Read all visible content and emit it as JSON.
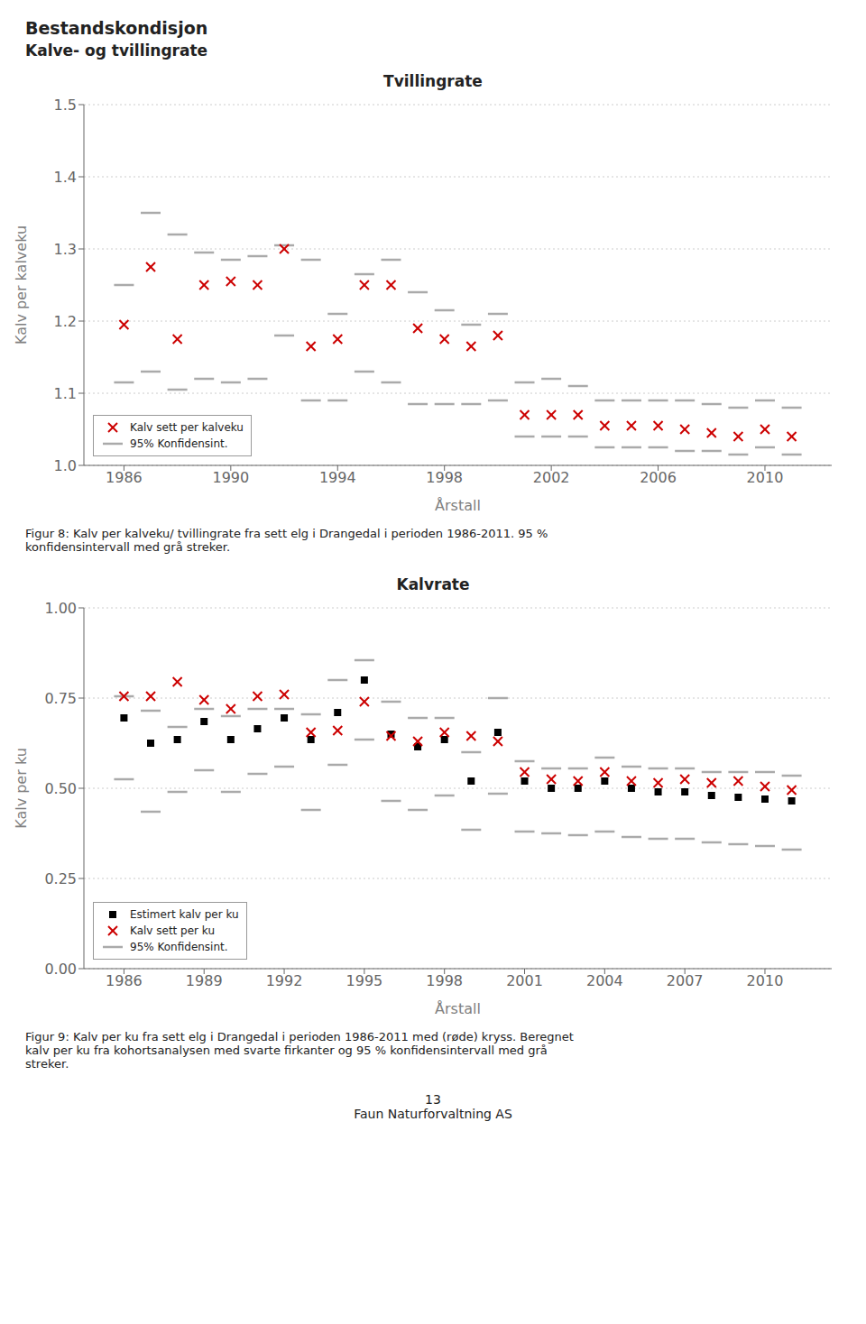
{
  "title": "Bestandskondisjon",
  "subtitle": "Kalve- og tvillingrate",
  "annotations": [
    "13",
    "Faun Naturforvaltning AS"
  ],
  "chart_data": [
    {
      "type": "scatter",
      "title": "Tvillingrate",
      "xlabel": "Årstall",
      "ylabel": "Kalv per kalveku",
      "x": [
        1986,
        1987,
        1988,
        1989,
        1990,
        1991,
        1992,
        1993,
        1994,
        1995,
        1996,
        1997,
        1998,
        1999,
        2000,
        2001,
        2002,
        2003,
        2004,
        2005,
        2006,
        2007,
        2008,
        2009,
        2010,
        2011
      ],
      "xlim": [
        1984.5,
        2012.5
      ],
      "xticks": [
        1986,
        1990,
        1994,
        1998,
        2002,
        2006,
        2010
      ],
      "ylim": [
        1.0,
        1.5
      ],
      "yticks": [
        {
          "value": 1.0,
          "label": "1.0"
        },
        1.1,
        1.2,
        1.3,
        1.4,
        1.5
      ],
      "grid": "y",
      "legend": "lower left",
      "series": [
        {
          "name": "Kalv sett per kalveku",
          "color": "#CC0000",
          "marker": "x",
          "values": [
            1.195,
            1.275,
            1.175,
            1.25,
            1.255,
            1.25,
            1.3,
            1.165,
            1.175,
            1.25,
            1.25,
            1.19,
            1.175,
            1.165,
            1.18,
            1.07,
            1.07,
            1.07,
            1.055,
            1.055,
            1.055,
            1.05,
            1.045,
            1.04,
            1.05,
            1.04
          ]
        },
        {
          "name": "95% Konfidensint.",
          "color": "#AAAAAA",
          "marker": "dash",
          "upper": [
            1.25,
            1.35,
            1.32,
            1.295,
            1.285,
            1.29,
            1.305,
            1.285,
            1.21,
            1.265,
            1.285,
            1.24,
            1.215,
            1.195,
            1.21,
            1.115,
            1.12,
            1.11,
            1.09,
            1.09,
            1.09,
            1.09,
            1.085,
            1.08,
            1.09,
            1.08
          ],
          "lower": [
            1.115,
            1.13,
            1.105,
            1.12,
            1.115,
            1.12,
            1.18,
            1.09,
            1.09,
            1.13,
            1.115,
            1.085,
            1.085,
            1.085,
            1.09,
            1.04,
            1.04,
            1.04,
            1.025,
            1.025,
            1.025,
            1.02,
            1.02,
            1.015,
            1.025,
            1.015
          ]
        }
      ],
      "annotations": [
        "Figur 8:  Kalv per kalveku/ tvillingrate fra sett elg i Drangedal i perioden 1986-2011. 95 %\nkonfidensintervall med grå streker."
      ]
    },
    {
      "type": "scatter",
      "title": "Kalvrate",
      "xlabel": "Årstall",
      "ylabel": "Kalv per ku",
      "x": [
        1986,
        1987,
        1988,
        1989,
        1990,
        1991,
        1992,
        1993,
        1994,
        1995,
        1996,
        1997,
        1998,
        1999,
        2000,
        2001,
        2002,
        2003,
        2004,
        2005,
        2006,
        2007,
        2008,
        2009,
        2010,
        2011
      ],
      "xlim": [
        1984.5,
        2012.5
      ],
      "xticks": [
        1986,
        1989,
        1992,
        1995,
        1998,
        2001,
        2004,
        2007,
        2010
      ],
      "ylim": [
        0.0,
        1.0
      ],
      "yticks": [
        {
          "value": 0.0,
          "label": "0.00"
        },
        {
          "value": 0.25,
          "label": "0.25"
        },
        {
          "value": 0.5,
          "label": "0.50"
        },
        {
          "value": 0.75,
          "label": "0.75"
        },
        {
          "value": 1.0,
          "label": "1.00"
        }
      ],
      "grid": "y",
      "legend": "lower left",
      "series": [
        {
          "name": "Estimert kalv per ku",
          "color": "#000000",
          "marker": "square",
          "values": [
            0.695,
            0.625,
            0.635,
            0.685,
            0.635,
            0.665,
            0.695,
            0.635,
            0.71,
            0.8,
            0.65,
            0.615,
            0.635,
            0.52,
            0.655,
            0.52,
            0.5,
            0.5,
            0.52,
            0.5,
            0.49,
            0.49,
            0.48,
            0.475,
            0.47,
            0.465
          ]
        },
        {
          "name": "Kalv sett per ku",
          "color": "#CC0000",
          "marker": "x",
          "values": [
            0.755,
            0.755,
            0.795,
            0.745,
            0.72,
            0.755,
            0.76,
            0.655,
            0.66,
            0.74,
            0.645,
            0.63,
            0.655,
            0.645,
            0.63,
            0.545,
            0.525,
            0.52,
            0.545,
            0.52,
            0.515,
            0.525,
            0.515,
            0.52,
            0.505,
            0.495
          ]
        },
        {
          "name": "95% Konfidensint.",
          "color": "#AAAAAA",
          "marker": "dash",
          "upper": [
            0.755,
            0.715,
            0.67,
            0.72,
            0.7,
            0.72,
            0.72,
            0.705,
            0.8,
            0.855,
            0.74,
            0.695,
            0.695,
            0.6,
            0.75,
            0.575,
            0.555,
            0.555,
            0.585,
            0.56,
            0.555,
            0.555,
            0.545,
            0.545,
            0.545,
            0.535
          ],
          "lower": [
            0.525,
            0.435,
            0.49,
            0.55,
            0.49,
            0.54,
            0.56,
            0.44,
            0.565,
            0.635,
            0.465,
            0.44,
            0.48,
            0.385,
            0.485,
            0.38,
            0.375,
            0.37,
            0.38,
            0.365,
            0.36,
            0.36,
            0.35,
            0.345,
            0.34,
            0.33
          ]
        }
      ],
      "annotations": [
        "Figur 9:  Kalv per ku fra sett elg i Drangedal i perioden 1986-2011 med (røde) kryss. Beregnet\nkalv per ku fra kohortsanalysen med svarte firkanter og 95 % konfidensintervall med grå\nstreker."
      ]
    }
  ]
}
